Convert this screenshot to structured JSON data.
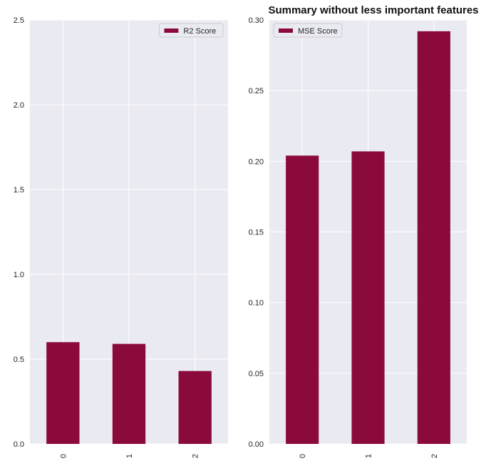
{
  "title": "Summary without less important features",
  "colors": {
    "bar": "#8b0a3c",
    "axes_bg": "#eaeaf2",
    "grid": "#ffffff",
    "text": "#262626"
  },
  "chart_data": [
    {
      "type": "bar",
      "categories": [
        "0",
        "1",
        "2"
      ],
      "series": [
        {
          "name": "R2 Score",
          "values": [
            0.6,
            0.59,
            0.43
          ]
        }
      ],
      "title": "",
      "xlabel": "",
      "ylabel": "",
      "ylim": [
        0,
        2.5
      ],
      "yticks": [
        "0.0",
        "0.5",
        "1.0",
        "1.5",
        "2.0",
        "2.5"
      ],
      "grid": true,
      "legend": "top-right"
    },
    {
      "type": "bar",
      "categories": [
        "0",
        "1",
        "2"
      ],
      "series": [
        {
          "name": "MSE Score",
          "values": [
            0.204,
            0.207,
            0.292
          ]
        }
      ],
      "title": "Summary without less important features",
      "xlabel": "",
      "ylabel": "",
      "ylim": [
        0,
        0.3
      ],
      "yticks": [
        "0.00",
        "0.05",
        "0.10",
        "0.15",
        "0.20",
        "0.25",
        "0.30"
      ],
      "grid": true,
      "legend": "top-left"
    }
  ]
}
